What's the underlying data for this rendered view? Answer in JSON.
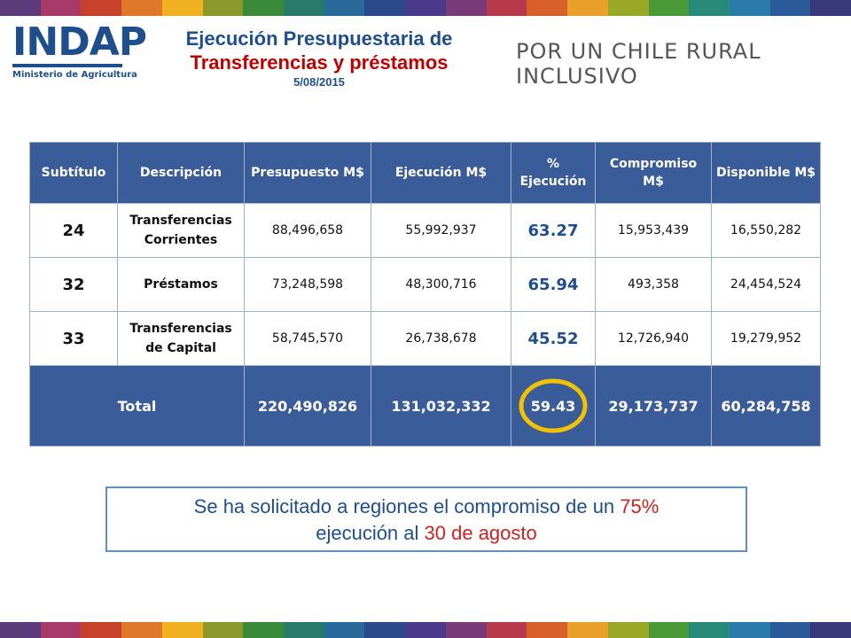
{
  "colors": {
    "stripe": [
      "#5d3a7a",
      "#a83a6a",
      "#c8412b",
      "#e0782a",
      "#f0b020",
      "#8a9a2a",
      "#3b8a3a",
      "#2a7a6a",
      "#2a6a9a",
      "#2a4a8a",
      "#4a3a8a",
      "#7a3a7a",
      "#b83a4a",
      "#d8602a",
      "#e8a02a",
      "#9aa82a",
      "#4a9a3a",
      "#2a8a7a",
      "#2a7aaa",
      "#2a5a9a",
      "#3a3a7a"
    ],
    "header_bg": "#3a5c99",
    "brand_blue": "#1f4e8c",
    "accent_red": "#c00000",
    "highlight_ring": "#f2c200"
  },
  "logo": {
    "name": "INDAP",
    "subtitle": "Ministerio de Agricultura"
  },
  "title": {
    "line1": "Ejecución Presupuestaria de",
    "line2": "Transferencias y préstamos",
    "date": "5/08/2015"
  },
  "slogan": "POR UN CHILE RURAL INCLUSIVO",
  "table": {
    "headers": [
      "Subtítulo",
      "Descripción",
      "Presupuesto M$",
      "Ejecución M$",
      "% Ejecución",
      "Compromiso M$",
      "Disponible M$"
    ],
    "rows": [
      {
        "code": "24",
        "desc": "Transferencias Corrientes",
        "presupuesto": "88,496,658",
        "ejecucion": "55,992,937",
        "pct": "63.27",
        "compromiso": "15,953,439",
        "disponible": "16,550,282"
      },
      {
        "code": "32",
        "desc": "Préstamos",
        "presupuesto": "73,248,598",
        "ejecucion": "48,300,716",
        "pct": "65.94",
        "compromiso": "493,358",
        "disponible": "24,454,524"
      },
      {
        "code": "33",
        "desc": "Transferencias de Capital",
        "presupuesto": "58,745,570",
        "ejecucion": "26,738,678",
        "pct": "45.52",
        "compromiso": "12,726,940",
        "disponible": "19,279,952"
      }
    ],
    "total": {
      "label": "Total",
      "presupuesto": "220,490,826",
      "ejecucion": "131,032,332",
      "pct": "59.43",
      "compromiso": "29,173,737",
      "disponible": "60,284,758"
    }
  },
  "note": {
    "part1": "Se ha solicitado a regiones el compromiso de un ",
    "highlight1": "75%",
    "part2": "ejecución al ",
    "highlight2": "30 de agosto"
  }
}
